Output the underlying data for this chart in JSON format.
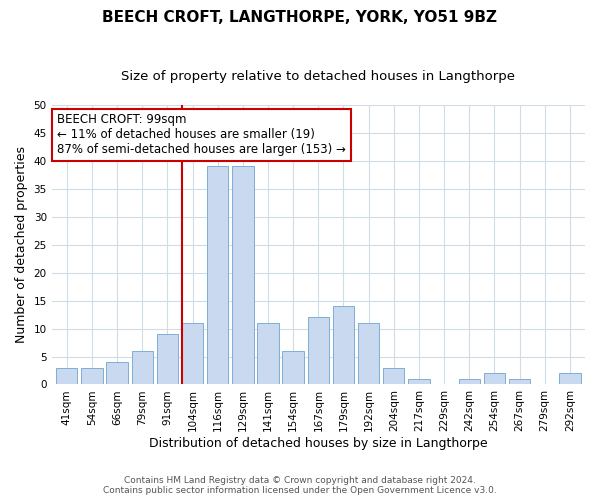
{
  "title": "BEECH CROFT, LANGTHORPE, YORK, YO51 9BZ",
  "subtitle": "Size of property relative to detached houses in Langthorpe",
  "xlabel": "Distribution of detached houses by size in Langthorpe",
  "ylabel": "Number of detached properties",
  "bin_labels": [
    "41sqm",
    "54sqm",
    "66sqm",
    "79sqm",
    "91sqm",
    "104sqm",
    "116sqm",
    "129sqm",
    "141sqm",
    "154sqm",
    "167sqm",
    "179sqm",
    "192sqm",
    "204sqm",
    "217sqm",
    "229sqm",
    "242sqm",
    "254sqm",
    "267sqm",
    "279sqm",
    "292sqm"
  ],
  "bar_heights": [
    3,
    3,
    4,
    6,
    9,
    11,
    39,
    39,
    11,
    6,
    12,
    14,
    11,
    3,
    1,
    0,
    1,
    2,
    1,
    0,
    2
  ],
  "bar_color": "#c9d9f0",
  "bar_edge_color": "#7fafd4",
  "vline_color": "#cc0000",
  "annotation_title": "BEECH CROFT: 99sqm",
  "annotation_line1": "← 11% of detached houses are smaller (19)",
  "annotation_line2": "87% of semi-detached houses are larger (153) →",
  "annotation_box_color": "#ffffff",
  "annotation_box_edge_color": "#cc0000",
  "ylim": [
    0,
    50
  ],
  "yticks": [
    0,
    5,
    10,
    15,
    20,
    25,
    30,
    35,
    40,
    45,
    50
  ],
  "footnote1": "Contains HM Land Registry data © Crown copyright and database right 2024.",
  "footnote2": "Contains public sector information licensed under the Open Government Licence v3.0.",
  "background_color": "#ffffff",
  "grid_color": "#d0dce8",
  "title_fontsize": 11,
  "subtitle_fontsize": 9.5,
  "axis_label_fontsize": 9,
  "tick_fontsize": 7.5,
  "annotation_fontsize": 8.5,
  "footnote_fontsize": 6.5
}
